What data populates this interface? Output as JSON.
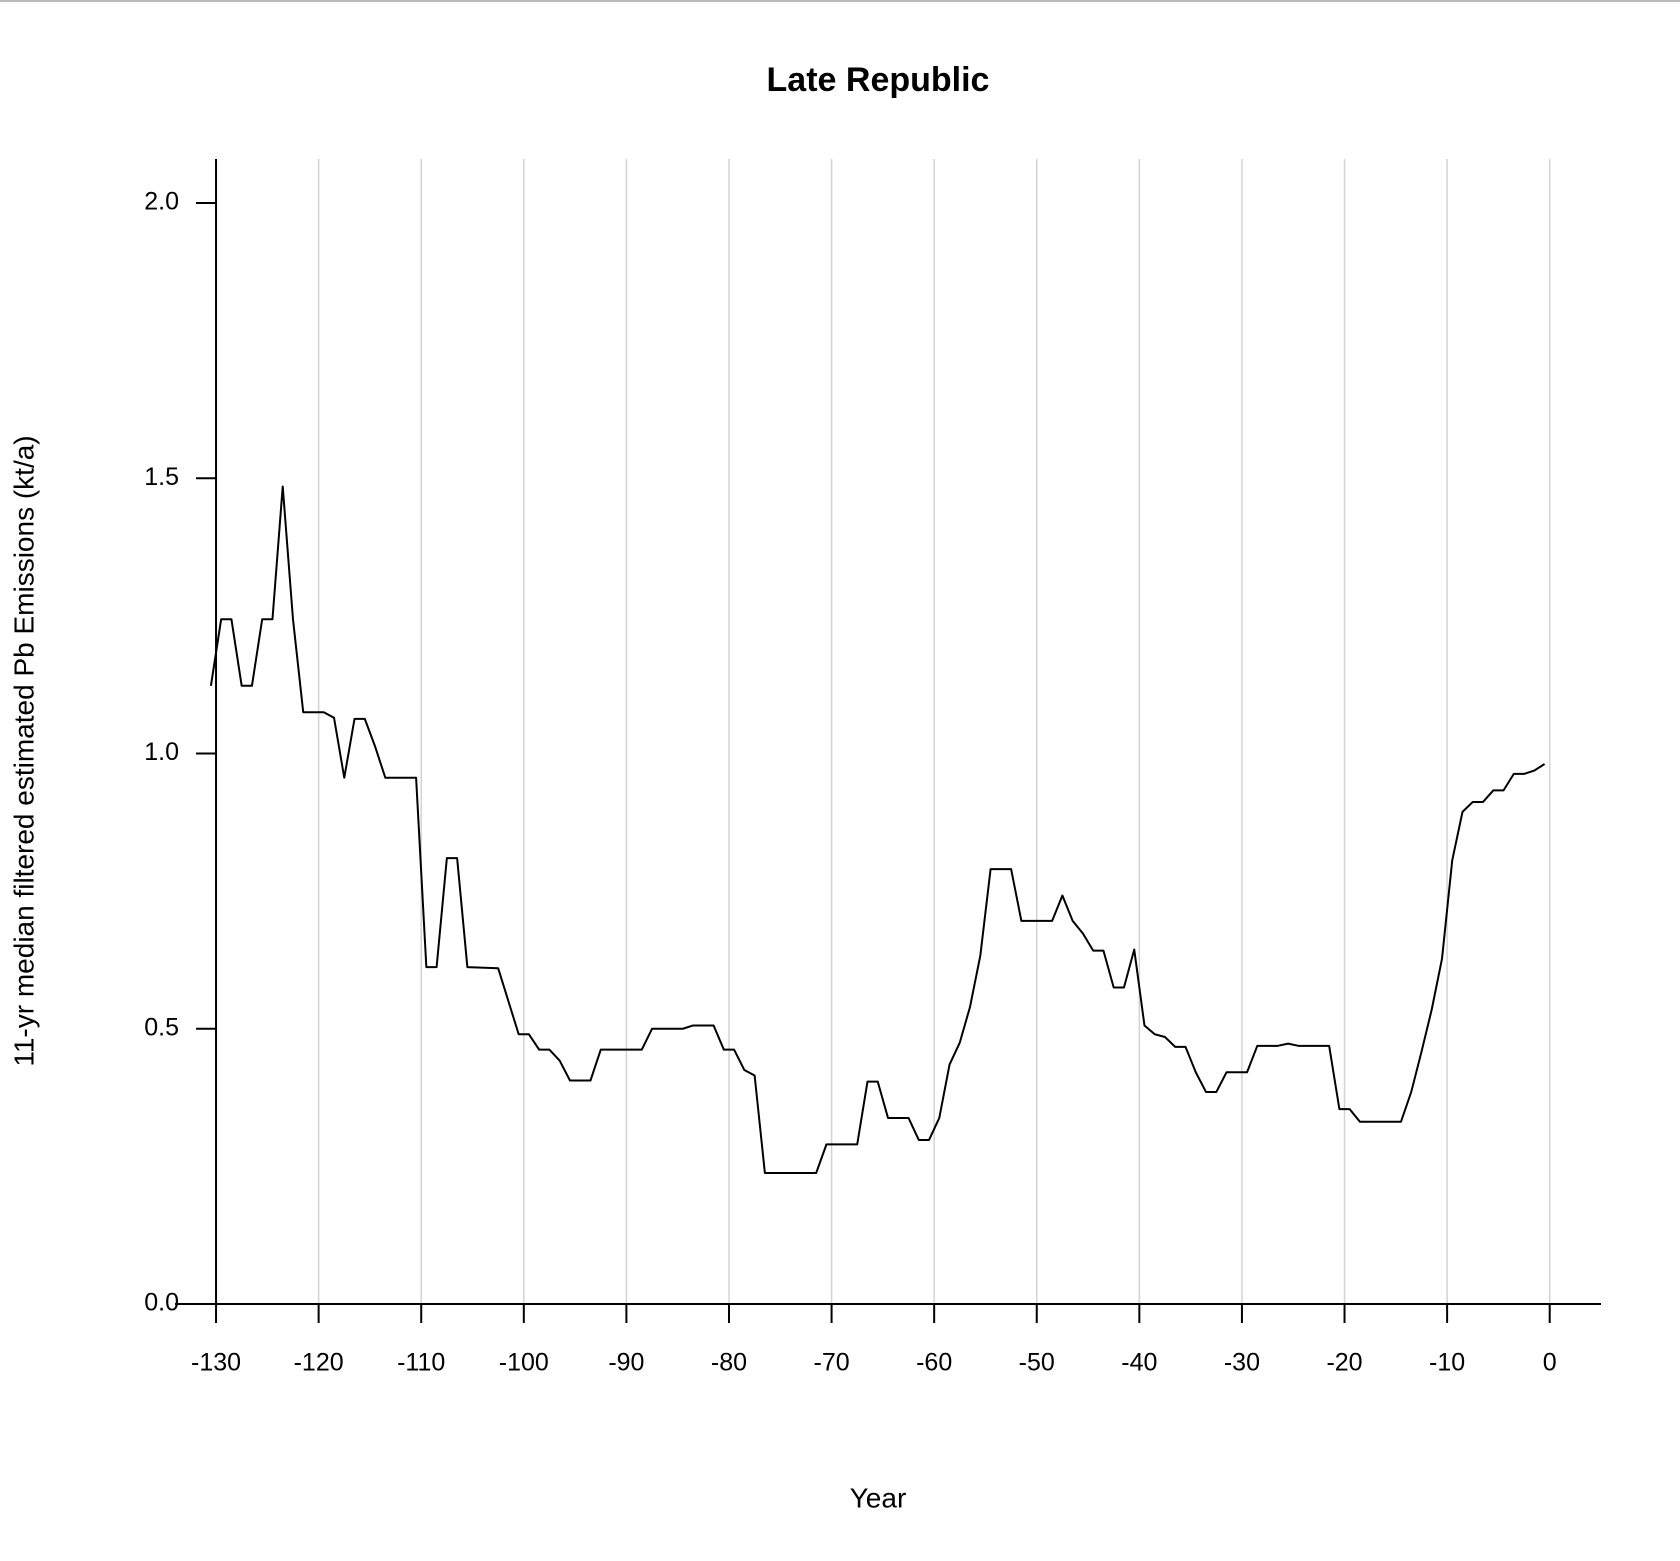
{
  "chart_data": {
    "type": "line",
    "title": "Late Republic",
    "x_label": "Year",
    "y_label": "11-yr median filtered estimated Pb Emissions (kt/a)",
    "series": [
      {
        "color": "#000000",
        "x": [
          -130.5,
          -129.5,
          -128.5,
          -127.5,
          -126.5,
          -125.5,
          -124.5,
          -123.5,
          -122.5,
          -121.5,
          -119.5,
          -118.5,
          -117.5,
          -116.5,
          -115.5,
          -114.5,
          -113.5,
          -110.5,
          -109.5,
          -108.5,
          -107.5,
          -106.5,
          -105.5,
          -102.5,
          -101.5,
          -100.5,
          -99.5,
          -98.5,
          -97.5,
          -96.5,
          -95.5,
          -93.5,
          -92.5,
          -88.5,
          -87.5,
          -84.5,
          -83.5,
          -81.5,
          -80.5,
          -79.5,
          -78.5,
          -77.5,
          -76.5,
          -71.5,
          -70.5,
          -67.5,
          -66.5,
          -65.5,
          -64.5,
          -62.5,
          -61.5,
          -60.5,
          -59.5,
          -58.5,
          -57.5,
          -56.5,
          -55.5,
          -54.5,
          -52.5,
          -51.5,
          -48.5,
          -47.5,
          -46.5,
          -45.5,
          -44.5,
          -43.5,
          -42.5,
          -41.5,
          -40.5,
          -39.5,
          -38.5,
          -37.5,
          -36.5,
          -35.5,
          -34.5,
          -33.5,
          -32.5,
          -31.5,
          -29.5,
          -28.5,
          -26.5,
          -25.5,
          -24.5,
          -21.5,
          -20.5,
          -19.5,
          -18.5,
          -14.5,
          -13.5,
          -12.5,
          -11.5,
          -10.5,
          -9.5,
          -8.5,
          -7.5,
          -6.5,
          -5.5,
          -4.5,
          -3.5,
          -2.5,
          -1.5,
          -0.5
        ],
        "values": [
          1.123,
          1.244,
          1.244,
          1.123,
          1.123,
          1.244,
          1.244,
          1.485,
          1.244,
          1.075,
          1.075,
          1.065,
          0.956,
          1.063,
          1.063,
          1.013,
          0.956,
          0.956,
          0.612,
          0.612,
          0.81,
          0.81,
          0.612,
          0.61,
          0.55,
          0.49,
          0.49,
          0.462,
          0.462,
          0.442,
          0.406,
          0.406,
          0.462,
          0.462,
          0.5,
          0.5,
          0.506,
          0.506,
          0.462,
          0.462,
          0.425,
          0.415,
          0.238,
          0.238,
          0.29,
          0.29,
          0.404,
          0.404,
          0.338,
          0.338,
          0.298,
          0.298,
          0.338,
          0.435,
          0.475,
          0.54,
          0.633,
          0.79,
          0.79,
          0.696,
          0.696,
          0.742,
          0.696,
          0.673,
          0.642,
          0.642,
          0.575,
          0.575,
          0.644,
          0.506,
          0.49,
          0.485,
          0.467,
          0.467,
          0.421,
          0.385,
          0.385,
          0.421,
          0.421,
          0.469,
          0.469,
          0.473,
          0.469,
          0.469,
          0.354,
          0.354,
          0.331,
          0.331,
          0.385,
          0.458,
          0.535,
          0.627,
          0.806,
          0.894,
          0.912,
          0.912,
          0.933,
          0.933,
          0.963,
          0.963,
          0.969,
          0.981
        ]
      }
    ],
    "xlim": [
      -134,
      5
    ],
    "ylim": [
      0,
      2.08
    ],
    "xticks": [
      -130,
      -120,
      -110,
      -100,
      -90,
      -80,
      -70,
      -60,
      -50,
      -40,
      -30,
      -20,
      -10,
      0
    ],
    "yticks": [
      {
        "value": 0,
        "label": "0.0"
      },
      0.5,
      {
        "value": 1,
        "label": "1.0"
      },
      1.5,
      {
        "value": 2,
        "label": "2.0"
      }
    ],
    "grid": "x",
    "grid_color": "#d3d3d3"
  }
}
